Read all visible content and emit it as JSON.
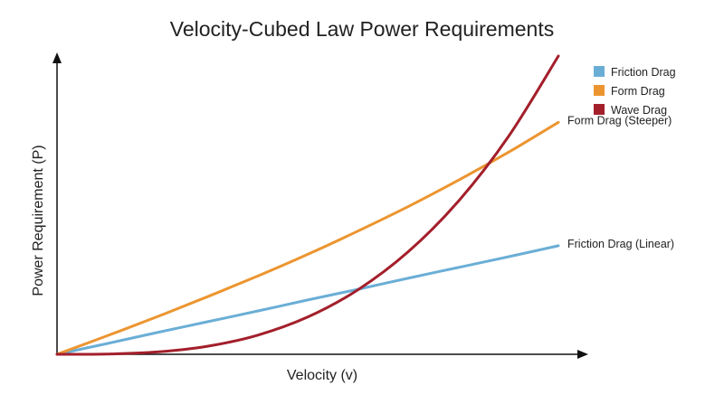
{
  "chart_data": {
    "type": "line",
    "title": "Velocity-Cubed Law Power Requirements",
    "xlabel": "Velocity (v)",
    "ylabel": "Power Requirement (P)",
    "xlim": [
      0,
      10
    ],
    "ylim": [
      0,
      10
    ],
    "grid": false,
    "legend_position": "top-right",
    "x": [
      0,
      1,
      2,
      3,
      4,
      5,
      6,
      7,
      8,
      9,
      10
    ],
    "series": [
      {
        "name": "Friction Drag",
        "color": "#6aaed6",
        "values": [
          0,
          0.36,
          0.73,
          1.09,
          1.45,
          1.82,
          2.18,
          2.55,
          2.91,
          3.27,
          3.64
        ]
      },
      {
        "name": "Form Drag",
        "color": "#ec9530",
        "values": [
          0,
          0.62,
          1.26,
          1.93,
          2.62,
          3.35,
          4.13,
          4.95,
          5.83,
          6.77,
          7.78
        ]
      },
      {
        "name": "Wave Drag",
        "color": "#a31f2b",
        "values": [
          0,
          0.01,
          0.08,
          0.27,
          0.64,
          1.25,
          2.16,
          3.43,
          5.12,
          7.29,
          10.0
        ]
      }
    ],
    "annotations": [
      {
        "text": "Form Drag (Steeper)",
        "series": 1
      },
      {
        "text": "Friction Drag (Linear)",
        "series": 0
      }
    ]
  }
}
